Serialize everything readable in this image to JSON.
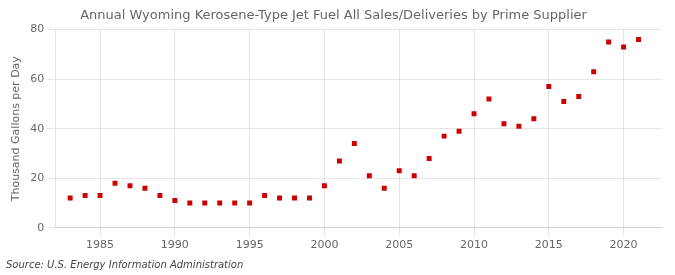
{
  "chart_data": {
    "type": "scatter",
    "title": "Annual Wyoming Kerosene-Type Jet Fuel All Sales/Deliveries by Prime Supplier",
    "ylabel": "Thousand Gallons per Day",
    "annotations": [
      "Source: U.S. Energy Information Administration"
    ],
    "x": [
      1983,
      1984,
      1985,
      1986,
      1987,
      1988,
      1989,
      1990,
      1991,
      1992,
      1993,
      1994,
      1995,
      1996,
      1997,
      1998,
      1999,
      2000,
      2001,
      2002,
      2003,
      2004,
      2005,
      2006,
      2007,
      2008,
      2009,
      2010,
      2011,
      2012,
      2013,
      2014,
      2015,
      2016,
      2017,
      2018,
      2019,
      2020,
      2021
    ],
    "values": [
      12,
      13,
      13,
      18,
      17,
      16,
      13,
      11,
      10,
      10,
      10,
      10,
      10,
      13,
      12,
      12,
      12,
      17,
      27,
      34,
      21,
      16,
      23,
      21,
      28,
      37,
      39,
      46,
      52,
      42,
      41,
      44,
      57,
      51,
      53,
      63,
      75,
      73,
      76
    ],
    "color": "#cc0000",
    "marker": "square",
    "xlim": [
      1982,
      2022.5
    ],
    "xticks": [
      1985,
      1990,
      1995,
      2000,
      2005,
      2010,
      2015,
      2020
    ],
    "ylim": [
      0,
      80
    ],
    "yticks": [
      0,
      20,
      40,
      60,
      80
    ],
    "grid": true
  }
}
